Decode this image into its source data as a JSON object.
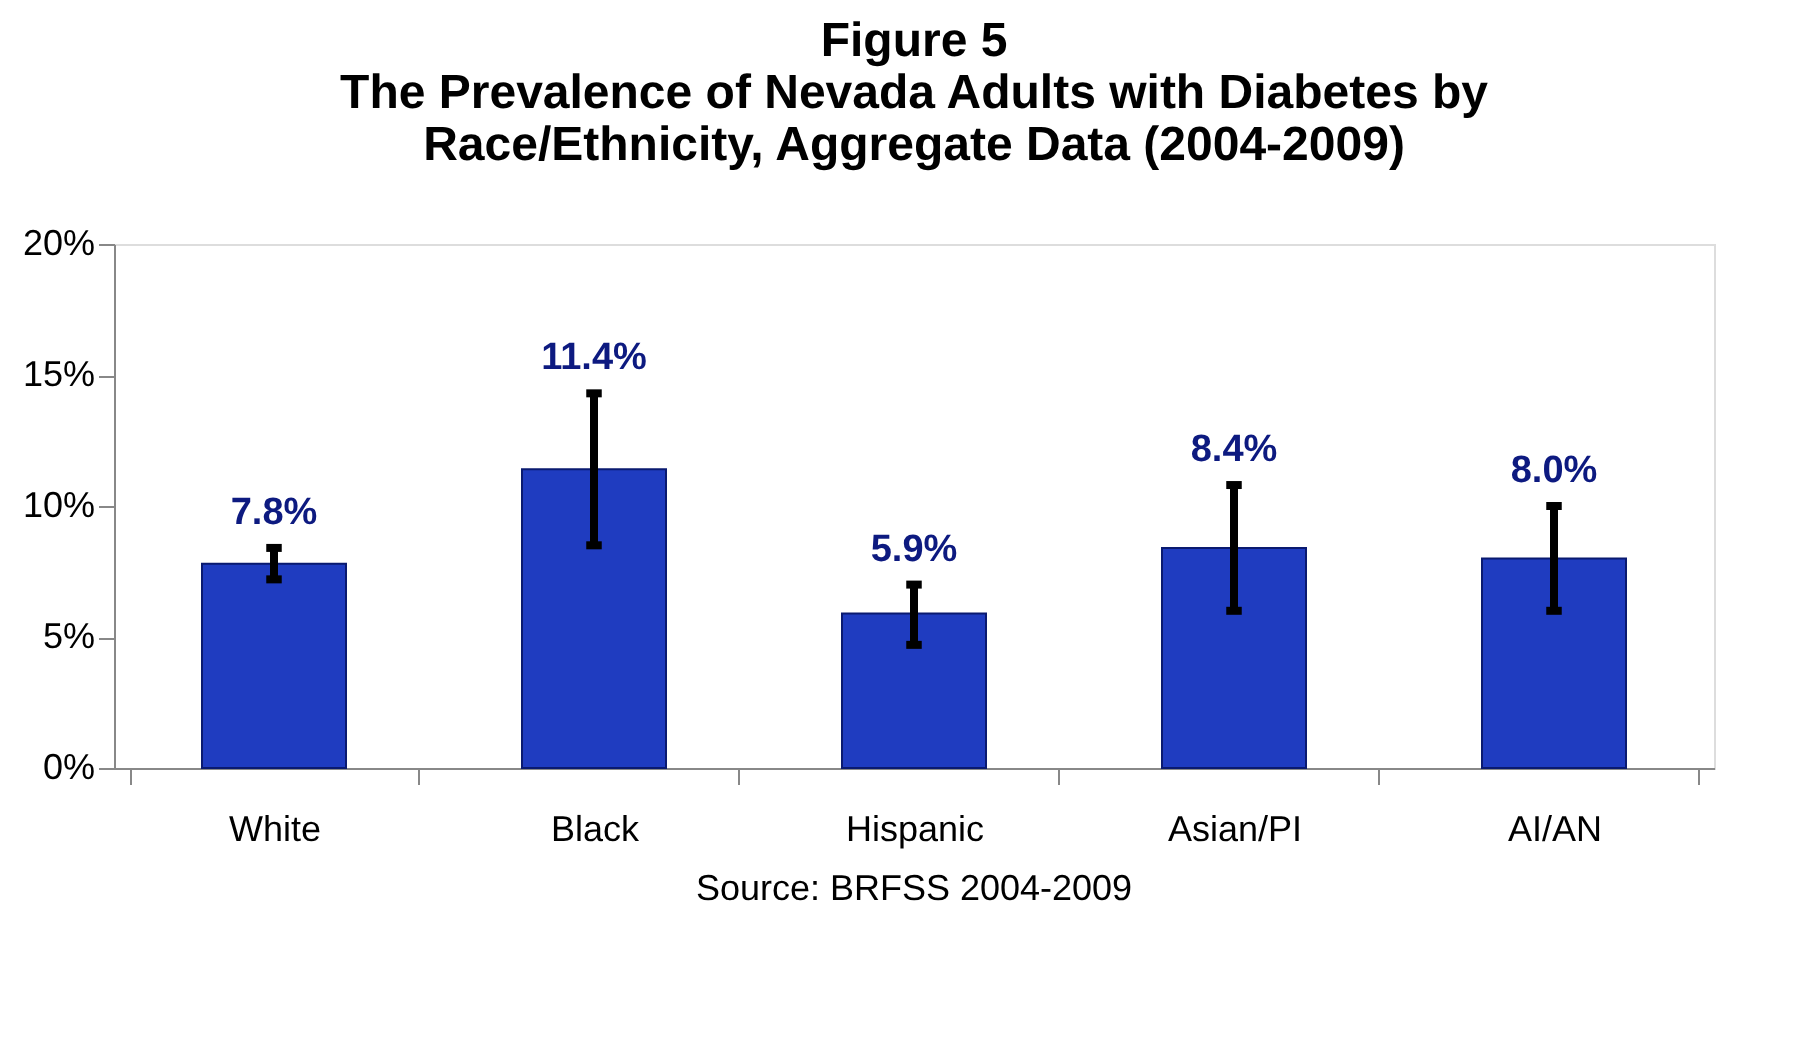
{
  "chart_data": {
    "type": "bar",
    "title": [
      "Figure 5",
      "The Prevalence of Nevada Adults with Diabetes by",
      "Race/Ethnicity, Aggregate Data (2004-2009)"
    ],
    "categories": [
      "White",
      "Black",
      "Hispanic",
      "Asian/PI",
      "AI/AN"
    ],
    "values": [
      7.8,
      11.4,
      5.9,
      8.4,
      8.0
    ],
    "errors": [
      [
        7.2,
        8.4
      ],
      [
        8.5,
        14.3
      ],
      [
        4.7,
        7.0
      ],
      [
        6.0,
        10.8
      ],
      [
        6.0,
        10.0
      ]
    ],
    "value_labels": [
      "7.8%",
      "11.4%",
      "5.9%",
      "8.4%",
      "8.0%"
    ],
    "color": "#1f3cc0",
    "ylim": [
      0,
      20
    ],
    "yticks": [
      {
        "value": 0,
        "label": "0%"
      },
      {
        "value": 5,
        "label": "5%"
      },
      {
        "value": 10,
        "label": "10%"
      },
      {
        "value": 15,
        "label": "15%"
      },
      {
        "value": 20,
        "label": "20%"
      }
    ],
    "grid": false,
    "annotations": [
      "Source: BRFSS 2004-2009"
    ]
  }
}
